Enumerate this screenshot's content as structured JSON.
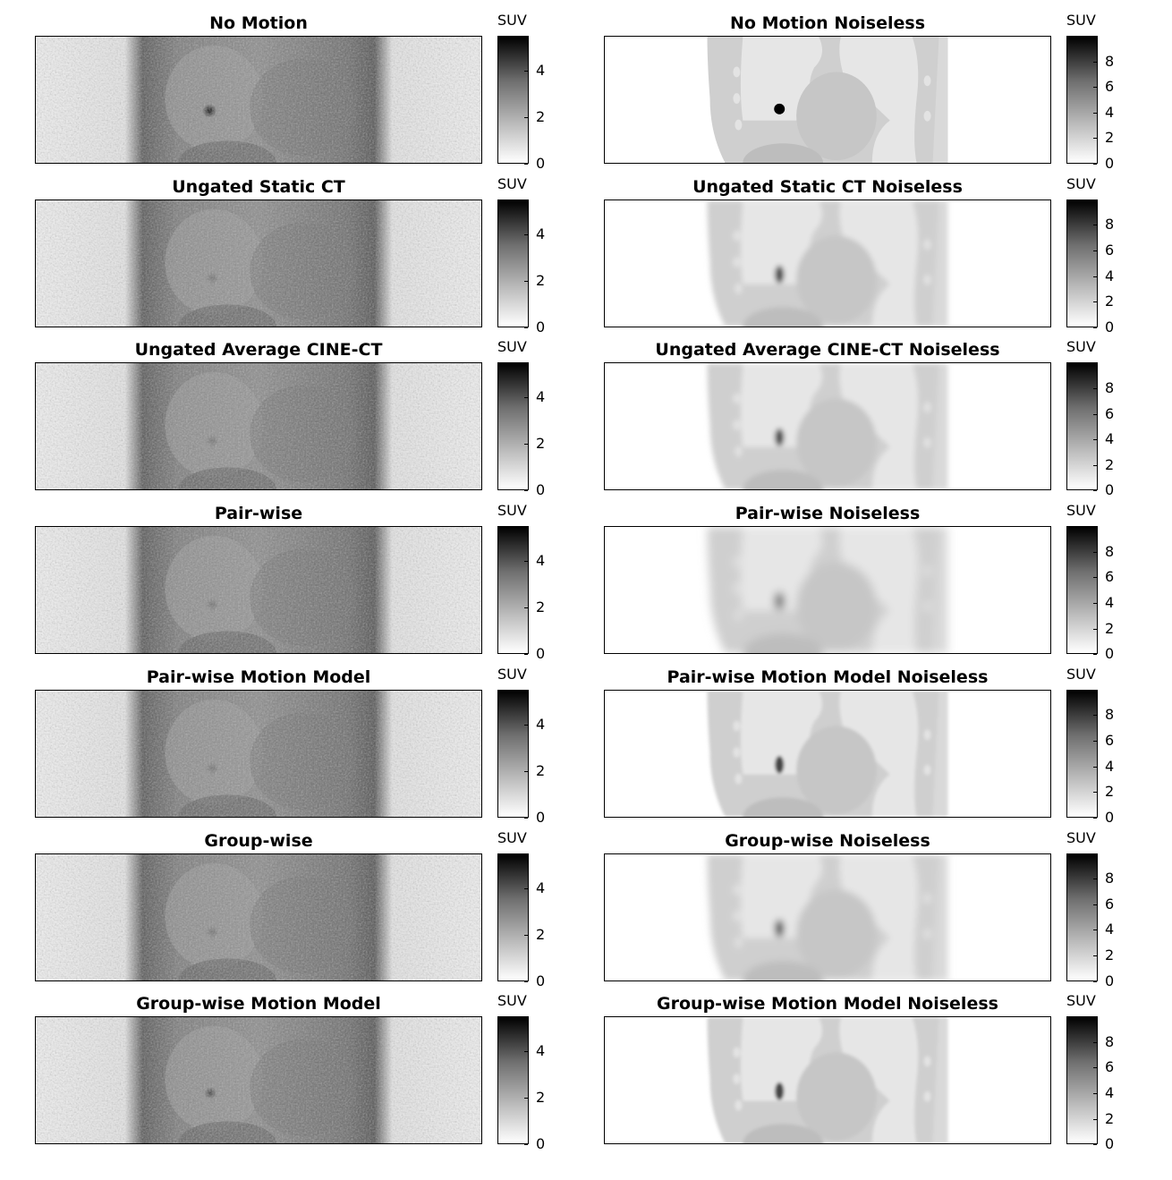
{
  "colorbar_label": "SUV",
  "left_ticks": [
    "0",
    "2",
    "4"
  ],
  "left_tick_values": [
    0,
    2,
    4
  ],
  "left_max": 5.5,
  "right_ticks": [
    "0",
    "2",
    "4",
    "6",
    "8"
  ],
  "right_tick_values": [
    0,
    2,
    4,
    6,
    8
  ],
  "right_max": 10,
  "colormap": [
    "#ffffff",
    "#000000"
  ],
  "rows": [
    {
      "left_title": "No Motion",
      "right_title": "No Motion Noiseless",
      "blur": 0
    },
    {
      "left_title": "Ungated Static CT",
      "right_title": "Ungated Static CT Noiseless",
      "blur": 3
    },
    {
      "left_title": "Ungated Average CINE-CT",
      "right_title": "Ungated Average CINE-CT Noiseless",
      "blur": 3
    },
    {
      "left_title": "Pair-wise",
      "right_title": "Pair-wise Noiseless",
      "blur": 5
    },
    {
      "left_title": "Pair-wise Motion Model",
      "right_title": "Pair-wise Motion Model Noiseless",
      "blur": 2
    },
    {
      "left_title": "Group-wise",
      "right_title": "Group-wise Noiseless",
      "blur": 4
    },
    {
      "left_title": "Group-wise Motion Model",
      "right_title": "Group-wise Motion Model Noiseless",
      "blur": 2
    }
  ]
}
